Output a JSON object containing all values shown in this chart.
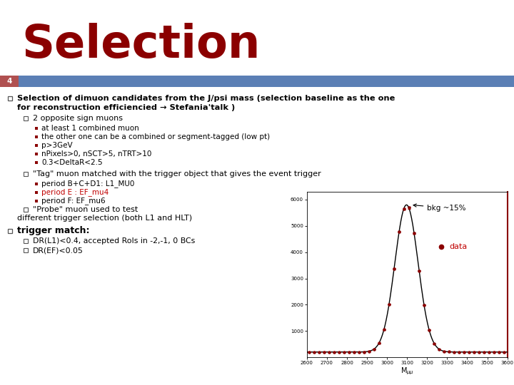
{
  "title": "Selection",
  "title_color": "#8B0000",
  "slide_number": "4",
  "slide_number_bg": "#B05050",
  "header_bar_color": "#5B7FB5",
  "background_color": "#FFFFFF",
  "bullet1_line1": "Selection of dimuon candidates from the J/psi mass (selection baseline as the one",
  "bullet1_line2": "for reconstruction efficiencied → Stefania'talk )",
  "sub_bullet1": "2 opposite sign muons",
  "sub_sub_bullets": [
    "at least 1 combined muon",
    "the other one can be a combined or segment-tagged (low pt)",
    "p>3GeV",
    "nPixels>0, nSCT>5, nTRT>10",
    "0.3<DeltaR<2.5"
  ],
  "tag_bullet": "\"Tag\" muon matched with the trigger object that gives the event trigger",
  "period_bullets": [
    [
      "period B+C+D1: L1_MU0",
      "#000000"
    ],
    [
      "period E : EF_mu4",
      "#C00000"
    ],
    [
      "period F: EF_mu6",
      "#000000"
    ]
  ],
  "probe_line1": "\"Probe\" muon used to test",
  "probe_line2": "different trigger selection (both L1 and HLT)",
  "trigger_match": "trigger match:",
  "trigger_sub": [
    "DR(L1)<0.4, accepted RoIs in -2,-1, 0 BCs",
    "DR(EF)<0.05"
  ],
  "plot_annotation1": "bkg ~15%",
  "plot_annotation2": "data",
  "plot_annotation2_color": "#C00000",
  "plot_xlim": [
    2600,
    3600
  ],
  "plot_ylim": [
    0,
    6300
  ],
  "plot_ytick_labels": [
    "",
    "1000",
    "2000",
    "3000",
    "4000",
    "5000",
    "6000"
  ],
  "plot_xtick_labels": [
    "2600",
    "2700",
    "2800",
    "2900",
    "3000",
    "3100",
    "3200",
    "3300",
    "3400",
    "3500",
    "3600"
  ],
  "gauss_mean": 3097,
  "gauss_sigma": 58,
  "gauss_amplitude": 5600,
  "bkg_level": 200,
  "square_bullet_color": "#8B0000",
  "small_bullet_color": "#8B0000"
}
